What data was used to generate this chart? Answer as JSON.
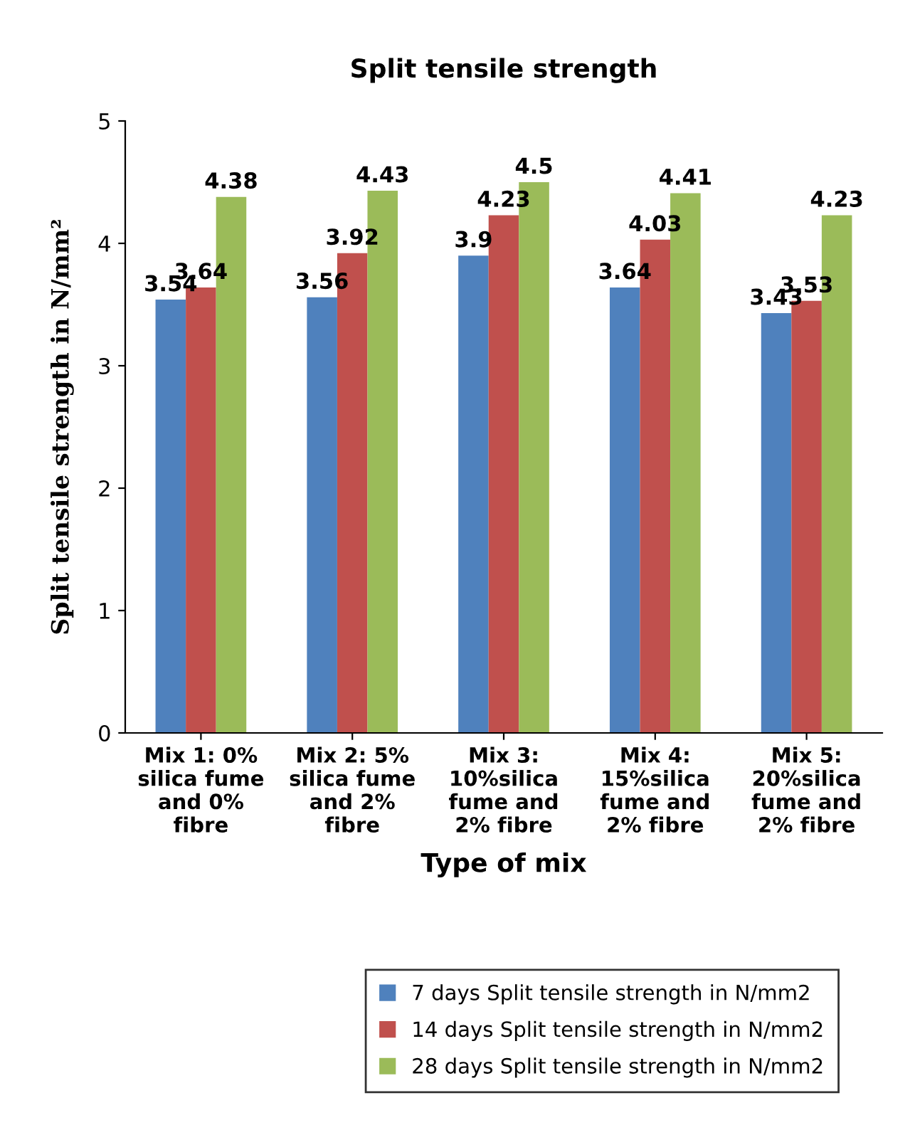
{
  "chart_data": {
    "type": "bar",
    "title": "Split tensile strength",
    "xlabel": "Type of mix",
    "ylabel": "Split tensile strength in N/mm²",
    "categories": [
      "Mix 1: 0%\nsilica fume\nand 0%\nfibre",
      "Mix 2: 5%\nsilica fume\nand 2%\nfibre",
      "Mix 3:\n10%silica\nfume and\n2% fibre",
      "Mix 4:\n15%silica\nfume and\n2% fibre",
      "Mix 5:\n20%silica\nfume and\n2% fibre"
    ],
    "series": [
      {
        "name": "7 days Split tensile strength in N/mm2",
        "color": "#4f81bd",
        "values": [
          3.54,
          3.56,
          3.9,
          3.64,
          3.43
        ]
      },
      {
        "name": "14 days Split tensile strength in N/mm2",
        "color": "#c0504d",
        "values": [
          3.64,
          3.92,
          4.23,
          4.03,
          3.53
        ]
      },
      {
        "name": "28 days Split tensile strength in N/mm2",
        "color": "#9bbb59",
        "values": [
          4.38,
          4.43,
          4.5,
          4.41,
          4.23
        ]
      }
    ],
    "ylim": [
      0,
      5
    ],
    "yticks": [
      0,
      1,
      2,
      3,
      4,
      5
    ],
    "data_labels": true,
    "legend": "bottom",
    "grid": false
  }
}
